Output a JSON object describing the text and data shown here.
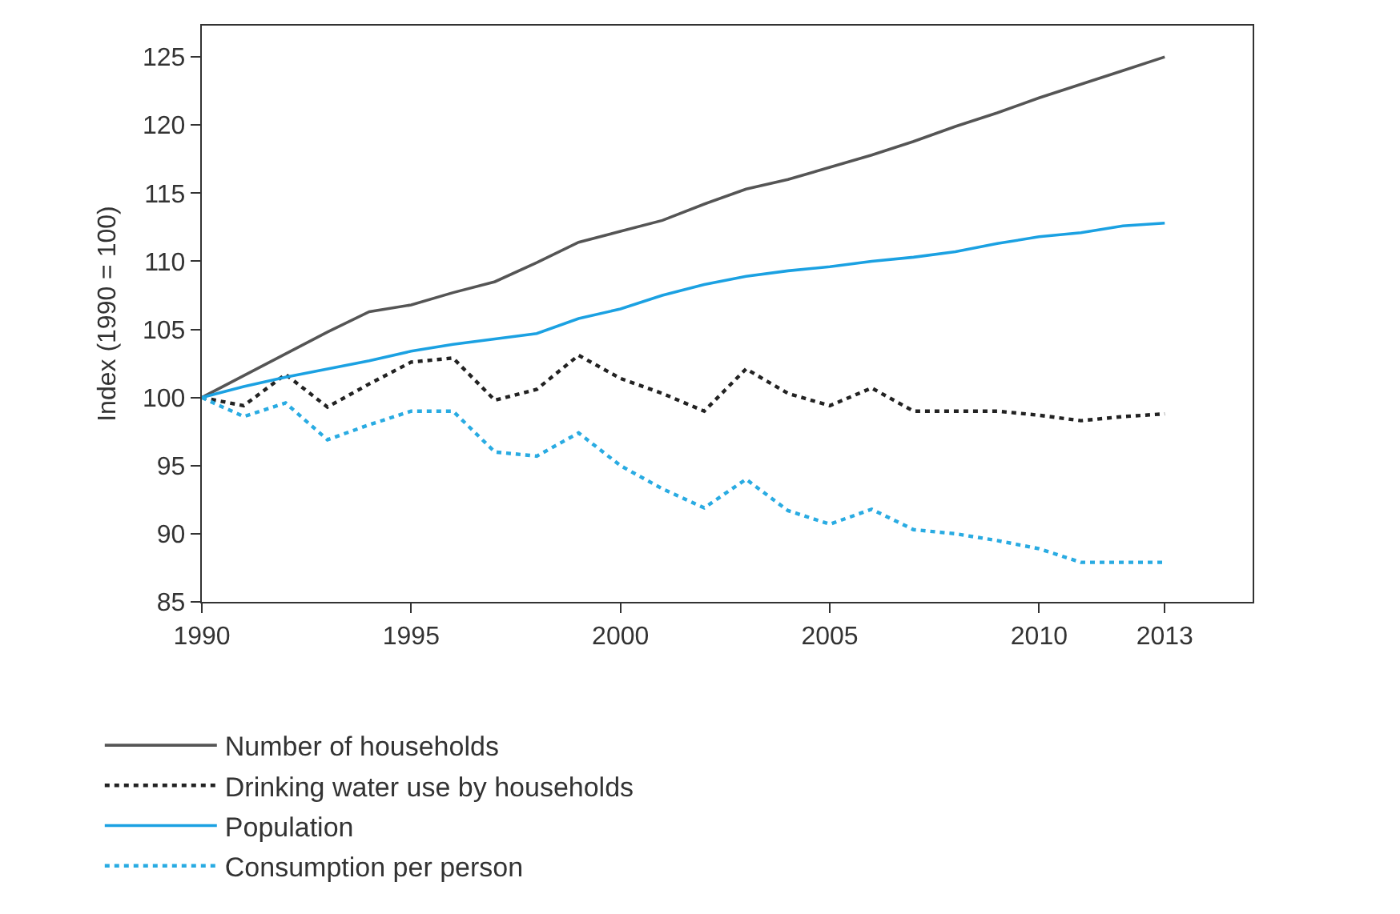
{
  "chart_data": {
    "type": "line",
    "ylabel": "Index (1990 = 100)",
    "x": [
      1990,
      1991,
      1992,
      1993,
      1994,
      1995,
      1996,
      1997,
      1998,
      1999,
      2000,
      2001,
      2002,
      2003,
      2004,
      2005,
      2006,
      2007,
      2008,
      2009,
      2010,
      2011,
      2012,
      2013
    ],
    "series": [
      {
        "name": "Number of households",
        "color": "#555555",
        "line_style": "solid",
        "values": [
          100,
          101.6,
          103.2,
          104.8,
          106.3,
          106.8,
          107.7,
          108.5,
          109.9,
          111.4,
          112.2,
          113.0,
          114.2,
          115.3,
          116.0,
          116.9,
          117.8,
          118.8,
          119.9,
          120.9,
          122.0,
          123.0,
          124.0,
          125.0
        ]
      },
      {
        "name": "Drinking water use by households",
        "color": "#222222",
        "line_style": "dotted",
        "values": [
          100,
          99.4,
          101.7,
          99.3,
          101.0,
          102.6,
          102.9,
          99.8,
          100.6,
          103.1,
          101.4,
          100.3,
          99.0,
          102.1,
          100.3,
          99.4,
          100.7,
          99.0,
          99.0,
          99.0,
          98.7,
          98.3,
          98.6,
          98.8
        ]
      },
      {
        "name": "Population",
        "color": "#1ba1e2",
        "line_style": "solid",
        "values": [
          100,
          100.8,
          101.5,
          102.1,
          102.7,
          103.4,
          103.9,
          104.3,
          104.7,
          105.8,
          106.5,
          107.5,
          108.3,
          108.9,
          109.3,
          109.6,
          110.0,
          110.3,
          110.7,
          111.3,
          111.8,
          112.1,
          112.6,
          112.8
        ]
      },
      {
        "name": "Consumption per person",
        "color": "#29abe2",
        "line_style": "dotted",
        "values": [
          100,
          98.6,
          99.6,
          96.9,
          98.0,
          99.0,
          99.0,
          96.0,
          95.7,
          97.4,
          95.0,
          93.3,
          91.9,
          94.0,
          91.7,
          90.7,
          91.8,
          90.3,
          90.0,
          89.5,
          88.9,
          87.9,
          87.9,
          87.9
        ]
      }
    ],
    "xlim": [
      1990,
      2015.1
    ],
    "xticks": [
      1990,
      1995,
      2000,
      2005,
      2010,
      2013
    ],
    "ylim": [
      85,
      127.3
    ],
    "yticks": [
      85,
      90,
      95,
      100,
      105,
      110,
      115,
      120,
      125
    ],
    "legend": "bottom",
    "marker": "none"
  }
}
